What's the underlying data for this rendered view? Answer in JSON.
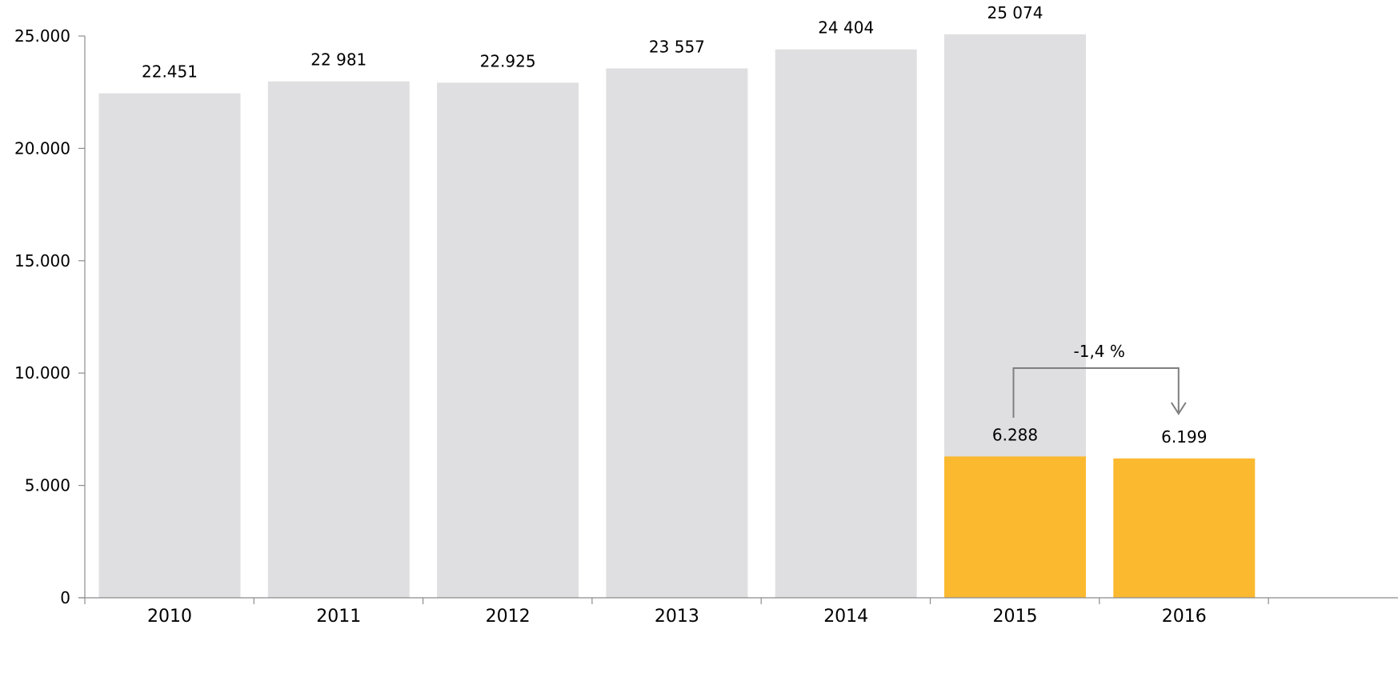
{
  "chart_data": {
    "type": "bar",
    "title": "",
    "xlabel": "",
    "ylabel": "",
    "ylim": [
      0,
      25000
    ],
    "yticks": [
      0,
      5000,
      10000,
      15000,
      20000,
      25000
    ],
    "ytick_labels": [
      "0",
      "5.000",
      "10.000",
      "15.000",
      "20.000",
      "25.000"
    ],
    "grid": false,
    "legend": "none",
    "categories": [
      "2010",
      "2011",
      "2012",
      "2013",
      "2014",
      "2015",
      "2016"
    ],
    "series": [
      {
        "color": "#dfdfe1",
        "values": [
          22451,
          22981,
          22925,
          23557,
          24404,
          25074,
          null
        ],
        "labels": [
          "22.451",
          "22 981",
          "22.925",
          "23 557",
          "24 404",
          "25 074",
          ""
        ]
      },
      {
        "color": "#fbb930",
        "values": [
          null,
          null,
          null,
          null,
          null,
          6288,
          6199
        ],
        "labels": [
          "",
          "",
          "",
          "",
          "",
          "6.288",
          "6.199"
        ]
      }
    ],
    "annotation": {
      "type": "change-arrow",
      "label": "-1,4 %",
      "from": "2015",
      "to": "2016",
      "color": "#7f7f7f"
    }
  }
}
